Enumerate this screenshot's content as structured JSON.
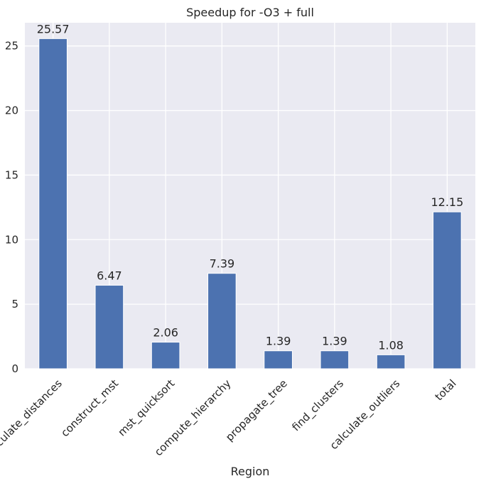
{
  "chart_data": {
    "type": "bar",
    "title": "Speedup for -O3 + full",
    "xlabel": "Region",
    "ylabel": "",
    "categories": [
      "calculate_distances",
      "construct_mst",
      "mst_quicksort",
      "compute_hierarchy",
      "propagate_tree",
      "find_clusters",
      "calculate_outliers",
      "total"
    ],
    "values": [
      25.57,
      6.47,
      2.06,
      7.39,
      1.39,
      1.39,
      1.08,
      12.15
    ],
    "data_labels": [
      "25.57",
      "6.47",
      "2.06",
      "7.39",
      "1.39",
      "1.39",
      "1.08",
      "12.15"
    ],
    "ylim": [
      0,
      26.8
    ],
    "yticks": [
      0,
      5,
      10,
      15,
      20,
      25
    ],
    "ytick_labels": [
      "0",
      "5",
      "10",
      "15",
      "20",
      "25"
    ],
    "grid": true,
    "legend": "none",
    "bar_color": "#4c72b0",
    "background_color": "#eaeaf2",
    "grid_color": "#ffffff"
  }
}
